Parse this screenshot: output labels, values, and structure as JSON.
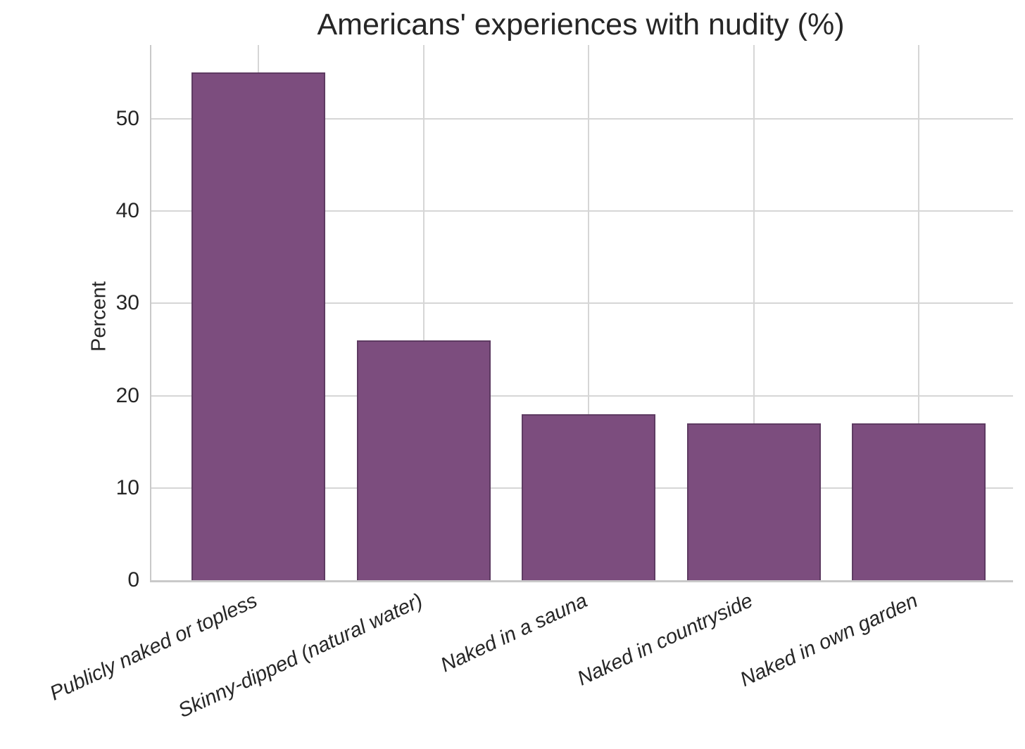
{
  "chart_data": {
    "type": "bar",
    "title": "Americans' experiences with nudity (%)",
    "xlabel": "",
    "ylabel": "Percent",
    "categories": [
      "Publicly naked or topless",
      "Skinny-dipped (natural water)",
      "Naked in a sauna",
      "Naked in countryside",
      "Naked in own garden"
    ],
    "values": [
      55,
      26,
      18,
      17,
      17
    ],
    "yticks": [
      0,
      10,
      20,
      30,
      40,
      50
    ],
    "ylim": [
      0,
      58
    ],
    "grid": true,
    "legend": "none",
    "bar_color": "#7c4d7e",
    "bar_edge_color": "#5e3b62",
    "grid_color": "#d6d6d6",
    "spine_color": "#c9c9c9",
    "text_color": "#262626",
    "background_color": "#ffffff"
  }
}
